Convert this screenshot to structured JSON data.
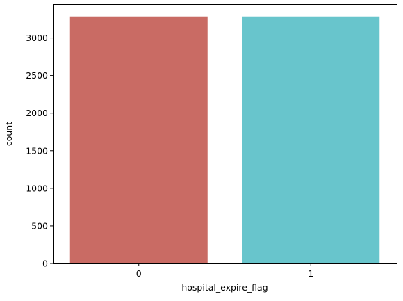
{
  "chart_data": {
    "type": "bar",
    "title": "",
    "xlabel": "hospital_expire_flag",
    "ylabel": "count",
    "categories": [
      "0",
      "1"
    ],
    "values": [
      3285,
      3285
    ],
    "colors": [
      "#c96b64",
      "#68c5cc"
    ],
    "ylim": [
      0,
      3449
    ],
    "yticks": [
      0,
      500,
      1000,
      1500,
      2000,
      2500,
      3000
    ],
    "grid": false,
    "legend": "none"
  }
}
